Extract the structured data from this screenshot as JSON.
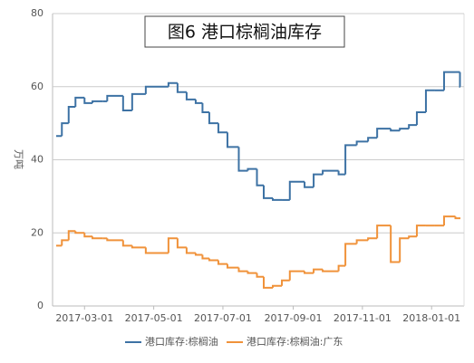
{
  "chart_data": {
    "type": "line",
    "step": true,
    "title": "图6 港口棕榈油库存",
    "y_label": "万吨",
    "x": [
      "2017-02-04",
      "2017-02-09",
      "2017-02-15",
      "2017-02-21",
      "2017-03-01",
      "2017-03-08",
      "2017-03-17",
      "2017-03-21",
      "2017-04-04",
      "2017-04-12",
      "2017-04-24",
      "2017-05-14",
      "2017-05-22",
      "2017-05-30",
      "2017-06-07",
      "2017-06-13",
      "2017-06-19",
      "2017-06-27",
      "2017-07-05",
      "2017-07-15",
      "2017-07-23",
      "2017-07-31",
      "2017-08-06",
      "2017-08-14",
      "2017-08-22",
      "2017-08-29",
      "2017-09-11",
      "2017-09-19",
      "2017-09-27",
      "2017-10-11",
      "2017-10-17",
      "2017-10-27",
      "2017-11-06",
      "2017-11-14",
      "2017-11-26",
      "2017-12-04",
      "2017-12-12",
      "2017-12-19",
      "2017-12-27",
      "2018-01-04",
      "2018-01-12",
      "2018-01-22",
      "2018-01-26"
    ],
    "series": [
      {
        "name": "港口库存:棕榈油",
        "color": "#3d72a4",
        "values": [
          46.5,
          50,
          54.5,
          57,
          55.5,
          56,
          56,
          57.5,
          53.5,
          58,
          60,
          61,
          58.5,
          56.5,
          55.5,
          53,
          50,
          47.5,
          43.5,
          37,
          37.5,
          33,
          29.5,
          29,
          29,
          34,
          32.5,
          36,
          37,
          36,
          44,
          45,
          46,
          48.5,
          48,
          48.5,
          49.5,
          53,
          59,
          59,
          64,
          64,
          60
        ]
      },
      {
        "name": "港口库存:棕榈油:广东",
        "color": "#f0923a",
        "values": [
          16.5,
          18,
          20.5,
          20,
          19,
          18.5,
          18.5,
          18,
          16.5,
          16,
          14.5,
          18.5,
          16,
          14.5,
          14,
          13,
          12.5,
          11.5,
          10.5,
          9.5,
          9,
          8,
          5,
          5.5,
          7,
          9.5,
          9,
          10,
          9.5,
          11,
          17,
          18,
          18.5,
          22,
          12,
          18.5,
          19,
          22,
          22,
          22,
          24.5,
          24,
          24
        ]
      }
    ],
    "xlim": [
      "2017-02-04",
      "2018-01-28"
    ],
    "xticks": [
      "2017-03-01",
      "2017-05-01",
      "2017-07-01",
      "2017-09-01",
      "2017-11-01",
      "2018-01-01"
    ],
    "ylim": [
      0,
      80
    ],
    "yticks": [
      0,
      20,
      40,
      60,
      80
    ],
    "grid": true
  }
}
